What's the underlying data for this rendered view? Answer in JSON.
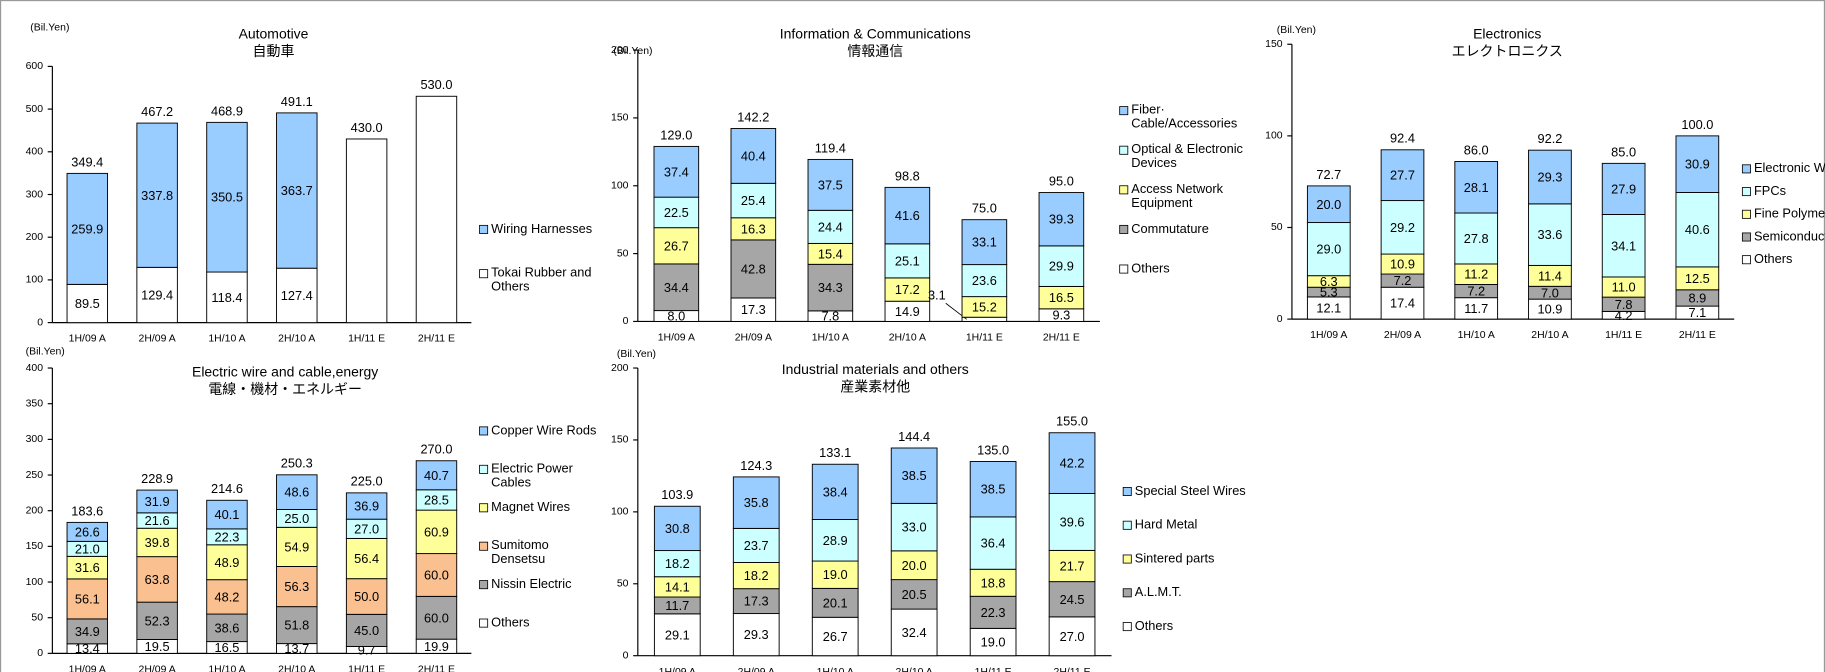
{
  "chart_data": [
    {
      "type": "bar",
      "stacked": true,
      "title": "Automotive",
      "subtitle": "自動車",
      "y_label": "(Bil.Yen)",
      "categories": [
        "1H/09 A",
        "2H/09 A",
        "1H/10 A",
        "2H/10 A",
        "1H/11 E",
        "2H/11 E"
      ],
      "ylim": [
        0,
        600
      ],
      "yticks": [
        0,
        100,
        200,
        300,
        400,
        500,
        600
      ],
      "series": [
        {
          "name": "Tokai Rubber and\nOthers",
          "color": "#ffffff",
          "values": [
            89.5,
            129.4,
            118.4,
            127.4,
            null,
            null
          ],
          "value_labels": [
            "89.5",
            "129.4",
            "118.4",
            "127.4",
            null,
            null
          ]
        },
        {
          "name": "Wiring Harnesses",
          "color": "#99ccff",
          "values": [
            259.9,
            337.8,
            350.5,
            363.7,
            null,
            null
          ],
          "value_labels": [
            "259.9",
            "337.8",
            "350.5",
            "363.7",
            null,
            null
          ]
        }
      ],
      "totals": {
        "values": [
          349.4,
          467.2,
          468.9,
          491.1,
          430,
          530
        ],
        "value_labels": [
          "349.4",
          "467.2",
          "468.9",
          "491.1",
          "430.0",
          "530.0"
        ]
      }
    },
    {
      "type": "bar",
      "stacked": true,
      "title": "Information & Communications",
      "subtitle": "情報通信",
      "y_label": "(Bil.Yen)",
      "categories": [
        "1H/09 A",
        "2H/09 A",
        "1H/10 A",
        "2H/10 A",
        "1H/11 E",
        "2H/11 E"
      ],
      "ylim": [
        0,
        200
      ],
      "yticks": [
        0,
        50,
        100,
        150,
        200
      ],
      "series": [
        {
          "name": "Others",
          "color": "#ffffff",
          "values": [
            8,
            17.3,
            7.8,
            14.9,
            3.1,
            9.3
          ],
          "value_labels": [
            "8.0",
            "17.3",
            "7.8",
            "14.9",
            "3.1",
            "9.3"
          ]
        },
        {
          "name": "Commutature",
          "color": "#a6a6a6",
          "values": [
            34.4,
            42.8,
            34.3,
            null,
            null,
            null
          ],
          "value_labels": [
            "34.4",
            "42.8",
            "34.3",
            null,
            null,
            null
          ]
        },
        {
          "name": "Access Network\nEquipment",
          "color": "#ffff99",
          "values": [
            26.7,
            16.3,
            15.4,
            17.2,
            15.2,
            16.5
          ],
          "value_labels": [
            "26.7",
            "16.3",
            "15.4",
            "17.2",
            "15.2",
            "16.5"
          ]
        },
        {
          "name": "Optical & Electronic\nDevices",
          "color": "#ccffff",
          "values": [
            22.5,
            25.4,
            24.4,
            25.1,
            23.6,
            29.9
          ],
          "value_labels": [
            "22.5",
            "25.4",
            "24.4",
            "25.1",
            "23.6",
            "29.9"
          ]
        },
        {
          "name": "Fiber·\nCable/Accessories",
          "color": "#99ccff",
          "values": [
            37.4,
            40.4,
            37.5,
            41.6,
            33.1,
            39.3
          ],
          "value_labels": [
            "37.4",
            "40.4",
            "37.5",
            "41.6",
            "33.1",
            "39.3"
          ]
        }
      ],
      "totals": {
        "values": [
          129,
          142.2,
          119.4,
          98.8,
          75,
          95
        ],
        "value_labels": [
          "129.0",
          "142.2",
          "119.4",
          "98.8",
          "75.0",
          "95.0"
        ]
      }
    },
    {
      "type": "bar",
      "stacked": true,
      "title": "Electronics",
      "subtitle": "エレクトロニクス",
      "y_label": "(Bil.Yen)",
      "categories": [
        "1H/09 A",
        "2H/09 A",
        "1H/10 A",
        "2H/10 A",
        "1H/11 E",
        "2H/11 E"
      ],
      "ylim": [
        0,
        150
      ],
      "yticks": [
        0,
        50,
        100,
        150
      ],
      "series": [
        {
          "name": "Others",
          "color": "#ffffff",
          "values": [
            12.1,
            17.4,
            11.7,
            10.9,
            4.2,
            7.1
          ],
          "value_labels": [
            "12.1",
            "17.4",
            "11.7",
            "10.9",
            "4.2",
            "7.1"
          ]
        },
        {
          "name": "Semiconductors",
          "color": "#a6a6a6",
          "values": [
            5.3,
            7.2,
            7.2,
            7,
            7.8,
            8.9
          ],
          "value_labels": [
            "5.3",
            "7.2",
            "7.2",
            "7.0",
            "7.8",
            "8.9"
          ]
        },
        {
          "name": "Fine Polymer",
          "color": "#ffff99",
          "values": [
            6.3,
            10.9,
            11.2,
            11.4,
            11,
            12.5
          ],
          "value_labels": [
            "6.3",
            "10.9",
            "11.2",
            "11.4",
            "11.0",
            "12.5"
          ]
        },
        {
          "name": "FPCs",
          "color": "#ccffff",
          "values": [
            29,
            29.2,
            27.8,
            33.6,
            34.1,
            40.6
          ],
          "value_labels": [
            "29.0",
            "29.2",
            "27.8",
            "33.6",
            "34.1",
            "40.6"
          ]
        },
        {
          "name": "Electronic Wires",
          "color": "#99ccff",
          "values": [
            20,
            27.7,
            28.1,
            29.3,
            27.9,
            30.9
          ],
          "value_labels": [
            "20.0",
            "27.7",
            "28.1",
            "29.3",
            "27.9",
            "30.9"
          ]
        }
      ],
      "totals": {
        "values": [
          72.7,
          92.4,
          86,
          92.2,
          85,
          100
        ],
        "value_labels": [
          "72.7",
          "92.4",
          "86.0",
          "92.2",
          "85.0",
          "100.0"
        ]
      }
    },
    {
      "type": "bar",
      "stacked": true,
      "title": "Electric wire and cable,energy",
      "subtitle": "電線・機材・エネルギー",
      "y_label": "(Bil.Yen)",
      "categories": [
        "1H/09 A",
        "2H/09 A",
        "1H/10 A",
        "2H/10 A",
        "1H/11 E",
        "2H/11 E"
      ],
      "ylim": [
        0,
        400
      ],
      "yticks": [
        0,
        50,
        100,
        150,
        200,
        250,
        300,
        350,
        400
      ],
      "series": [
        {
          "name": "Others",
          "color": "#ffffff",
          "values": [
            13.4,
            19.5,
            16.5,
            13.7,
            9.7,
            19.9
          ],
          "value_labels": [
            "13.4",
            "19.5",
            "16.5",
            "13.7",
            "9.7",
            "19.9"
          ]
        },
        {
          "name": "Nissin Electric",
          "color": "#a6a6a6",
          "values": [
            34.9,
            52.3,
            38.6,
            51.8,
            45,
            60
          ],
          "value_labels": [
            "34.9",
            "52.3",
            "38.6",
            "51.8",
            "45.0",
            "60.0"
          ]
        },
        {
          "name": "Sumitomo\nDensetsu",
          "color": "#fac090",
          "values": [
            56.1,
            63.8,
            48.2,
            56.3,
            50,
            60
          ],
          "value_labels": [
            "56.1",
            "63.8",
            "48.2",
            "56.3",
            "50.0",
            "60.0"
          ]
        },
        {
          "name": "Magnet Wires",
          "color": "#ffff99",
          "values": [
            31.6,
            39.8,
            48.9,
            54.9,
            56.4,
            60.9
          ],
          "value_labels": [
            "31.6",
            "39.8",
            "48.9",
            "54.9",
            "56.4",
            "60.9"
          ]
        },
        {
          "name": "Electric Power\nCables",
          "color": "#ccffff",
          "values": [
            21,
            21.6,
            22.3,
            25,
            27,
            28.5
          ],
          "value_labels": [
            "21.0",
            "21.6",
            "22.3",
            "25.0",
            "27.0",
            "28.5"
          ]
        },
        {
          "name": "Copper Wire Rods",
          "color": "#99ccff",
          "values": [
            26.6,
            31.9,
            40.1,
            48.6,
            36.9,
            40.7
          ],
          "value_labels": [
            "26.6",
            "31.9",
            "40.1",
            "48.6",
            "36.9",
            "40.7"
          ]
        }
      ],
      "totals": {
        "values": [
          183.6,
          228.9,
          214.6,
          250.3,
          225,
          270
        ],
        "value_labels": [
          "183.6",
          "228.9",
          "214.6",
          "250.3",
          "225.0",
          "270.0"
        ]
      }
    },
    {
      "type": "bar",
      "stacked": true,
      "title": "Industrial materials and others",
      "subtitle": "産業素材他",
      "y_label": "(Bil.Yen)",
      "categories": [
        "1H/09 A",
        "2H/09 A",
        "1H/10 A",
        "2H/10 A",
        "1H/11 E",
        "2H/11 E"
      ],
      "ylim": [
        0,
        200
      ],
      "yticks": [
        0,
        50,
        100,
        150,
        200
      ],
      "series": [
        {
          "name": "Others",
          "color": "#ffffff",
          "values": [
            29.1,
            29.3,
            26.7,
            32.4,
            19,
            27
          ],
          "value_labels": [
            "29.1",
            "29.3",
            "26.7",
            "32.4",
            "19.0",
            "27.0"
          ]
        },
        {
          "name": "A.L.M.T.",
          "color": "#a6a6a6",
          "values": [
            11.7,
            17.3,
            20.1,
            20.5,
            22.3,
            24.5
          ],
          "value_labels": [
            "11.7",
            "17.3",
            "20.1",
            "20.5",
            "22.3",
            "24.5"
          ]
        },
        {
          "name": "Sintered parts",
          "color": "#ffff99",
          "values": [
            14.1,
            18.2,
            19,
            20,
            18.8,
            21.7
          ],
          "value_labels": [
            "14.1",
            "18.2",
            "19.0",
            "20.0",
            "18.8",
            "21.7"
          ]
        },
        {
          "name": "Hard Metal",
          "color": "#ccffff",
          "values": [
            18.2,
            23.7,
            28.9,
            33,
            36.4,
            39.6
          ],
          "value_labels": [
            "18.2",
            "23.7",
            "28.9",
            "33.0",
            "36.4",
            "39.6"
          ]
        },
        {
          "name": "Special Steel Wires",
          "color": "#99ccff",
          "values": [
            30.8,
            35.8,
            38.4,
            38.5,
            38.5,
            42.2
          ],
          "value_labels": [
            "30.8",
            "35.8",
            "38.4",
            "38.5",
            "38.5",
            "42.2"
          ]
        }
      ],
      "totals": {
        "values": [
          103.9,
          124.3,
          133.1,
          144.4,
          135,
          155
        ],
        "value_labels": [
          "103.9",
          "124.3",
          "133.1",
          "144.4",
          "135.0",
          "155.0"
        ]
      }
    }
  ]
}
